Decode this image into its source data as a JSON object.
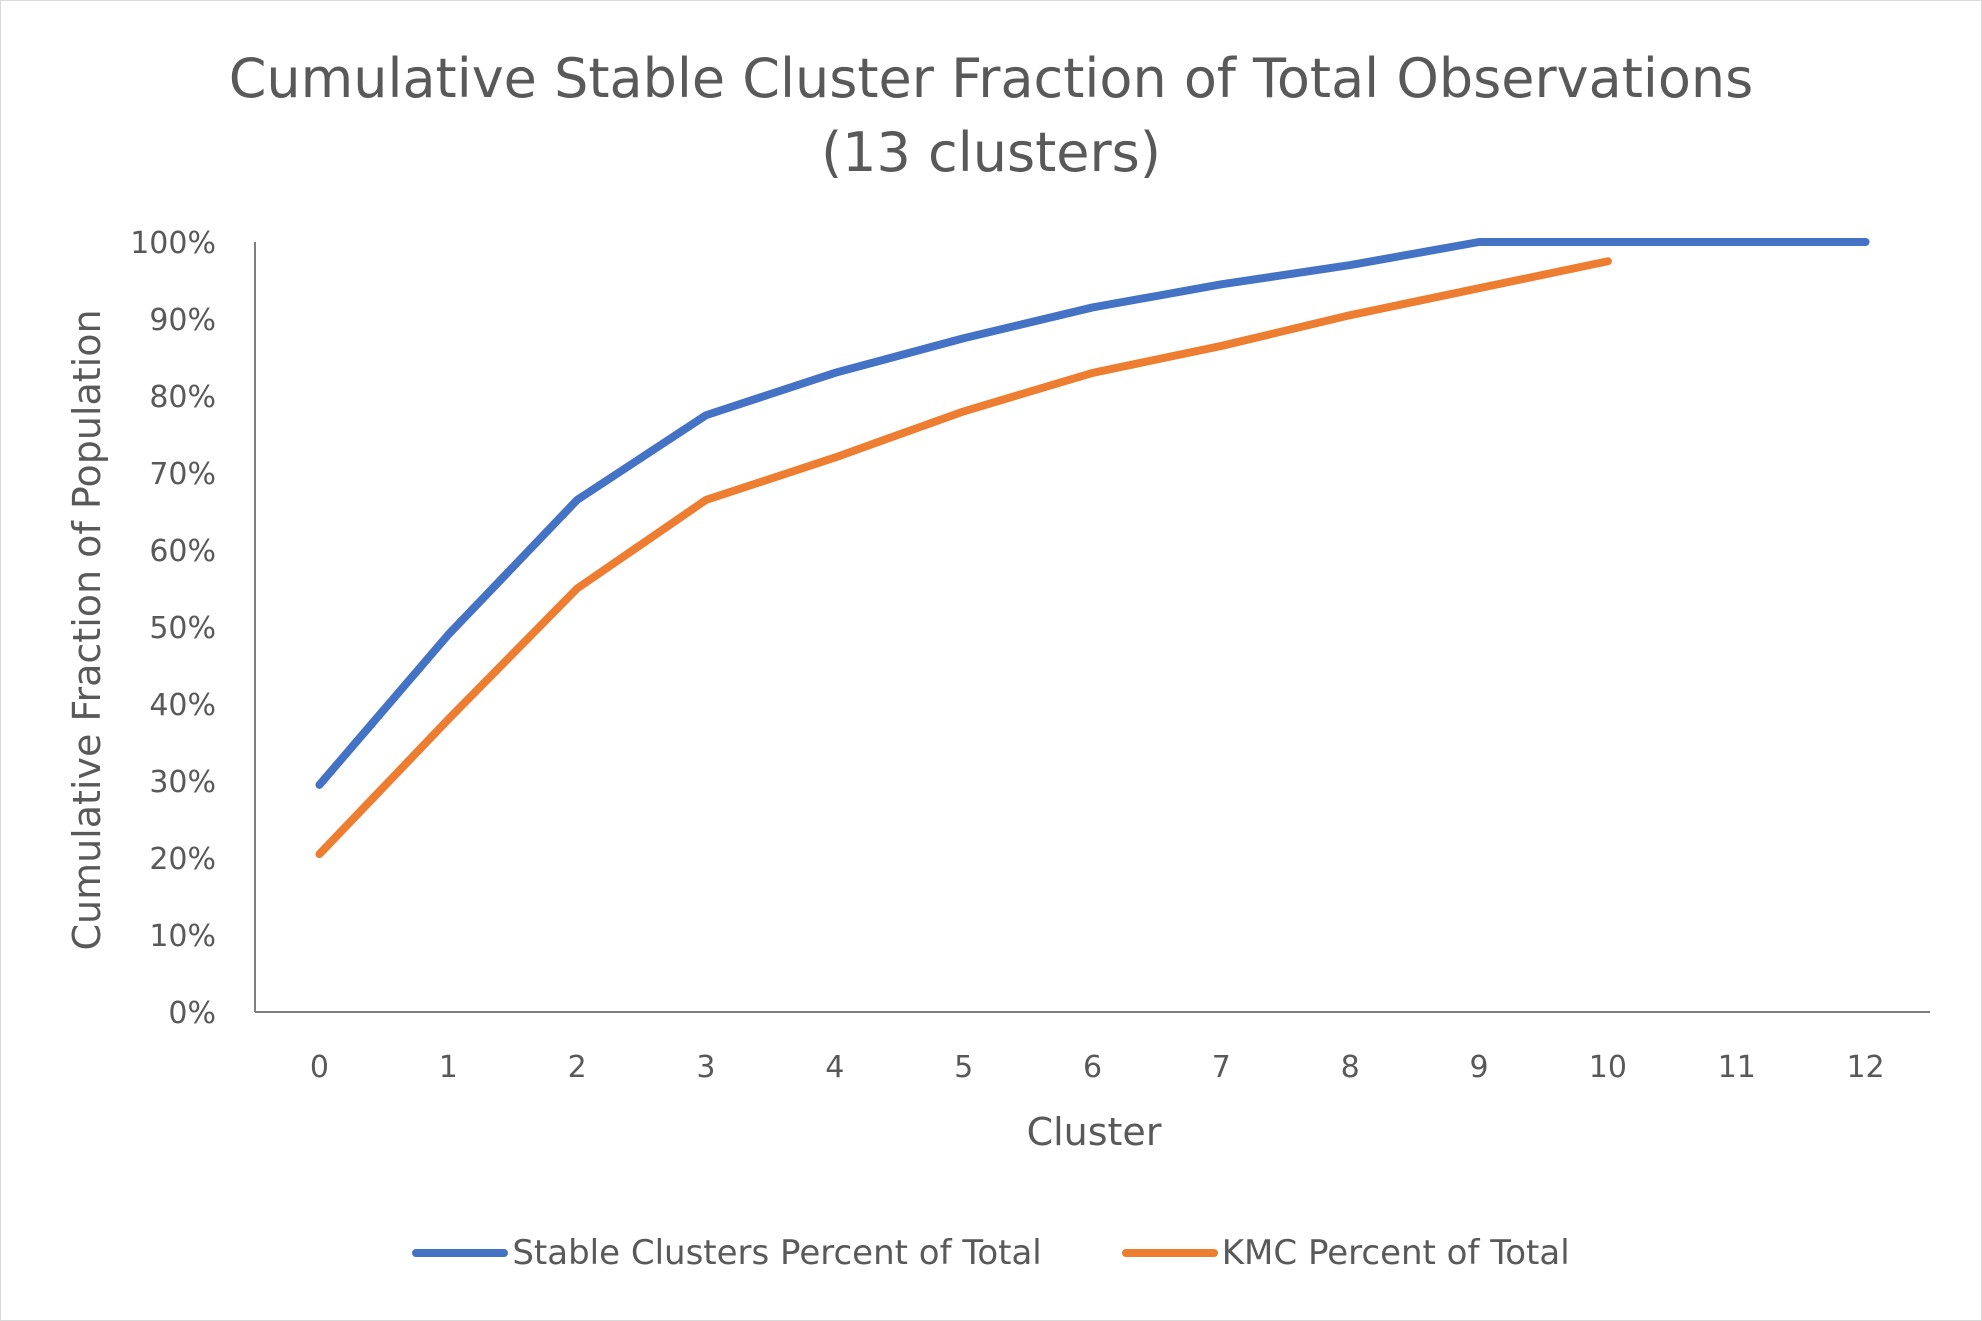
{
  "chart_data": {
    "type": "line",
    "title": "Cumulative Stable Cluster Fraction of Total Observations",
    "subtitle": "(13 clusters)",
    "xlabel": "Cluster",
    "ylabel": "Cumulative Fraction of Population",
    "x": [
      0,
      1,
      2,
      3,
      4,
      5,
      6,
      7,
      8,
      9,
      10,
      11,
      12
    ],
    "x_tick_labels": [
      "0",
      "1",
      "2",
      "3",
      "4",
      "5",
      "6",
      "7",
      "8",
      "9",
      "10",
      "11",
      "12"
    ],
    "y_tick_labels": [
      "0%",
      "10%",
      "20%",
      "30%",
      "40%",
      "50%",
      "60%",
      "70%",
      "80%",
      "90%",
      "100%"
    ],
    "ylim": [
      0,
      100
    ],
    "grid": false,
    "legend_position": "bottom",
    "series": [
      {
        "name": "Stable Clusters Percent of Total",
        "color": "#4472C4",
        "values": [
          29.5,
          49,
          66.5,
          77.5,
          83,
          87.5,
          91.5,
          94.5,
          97,
          100,
          100,
          100,
          100
        ]
      },
      {
        "name": "KMC Percent of Total",
        "color": "#ED7D31",
        "values": [
          20.5,
          38,
          55,
          66.5,
          72,
          78,
          83,
          86.5,
          90.5,
          94,
          97.5,
          null,
          null
        ]
      }
    ]
  }
}
